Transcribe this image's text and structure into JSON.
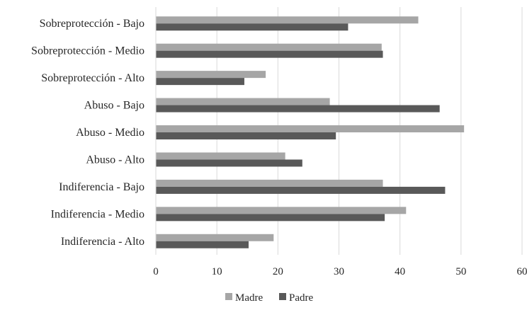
{
  "chart_data": {
    "type": "bar",
    "orientation": "horizontal",
    "title": "",
    "xlabel": "",
    "ylabel": "",
    "categories": [
      "Sobreprotección - Bajo",
      "Sobreprotección - Medio",
      "Sobreprotección - Alto",
      "Abuso - Bajo",
      "Abuso - Medio",
      "Abuso - Alto",
      "Indiferencia - Bajo",
      "Indiferencia - Medio",
      "Indiferencia - Alto"
    ],
    "series": [
      {
        "name": "Madre",
        "color": "#a6a6a6",
        "values": [
          43,
          37,
          18,
          28.5,
          50.5,
          21.2,
          37.2,
          41,
          19.3
        ]
      },
      {
        "name": "Padre",
        "color": "#595959",
        "values": [
          31.5,
          37.2,
          14.5,
          46.5,
          29.5,
          24,
          47.4,
          37.5,
          15.2
        ]
      }
    ],
    "xlim": [
      0,
      60
    ],
    "xticks": [
      "0",
      "10",
      "20",
      "30",
      "40",
      "50",
      "60"
    ],
    "grid": true,
    "legend_position": "bottom"
  }
}
